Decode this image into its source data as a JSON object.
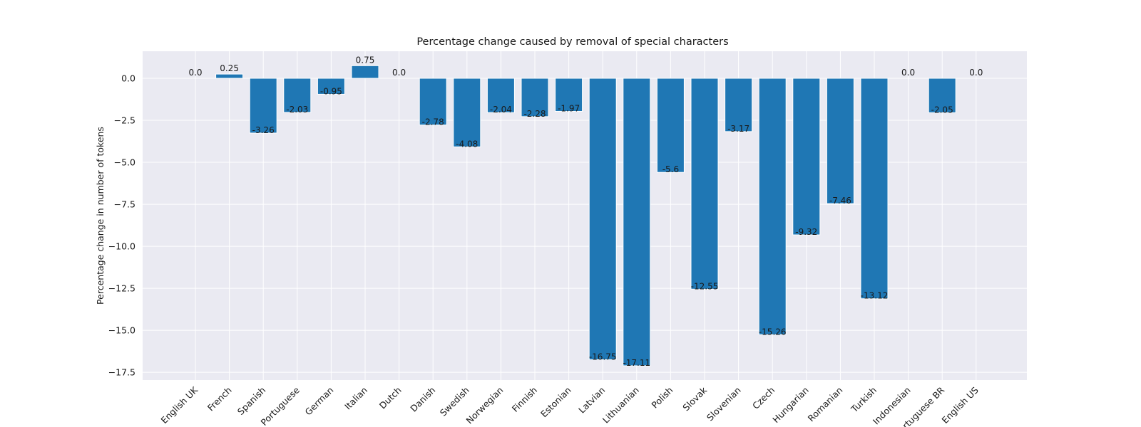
{
  "chart_data": {
    "type": "bar",
    "title": "Percentage change caused by removal of special characters",
    "xlabel": "",
    "ylabel": "Percentage change in number of tokens",
    "categories": [
      "English UK",
      "French",
      "Spanish",
      "Portuguese",
      "German",
      "Italian",
      "Dutch",
      "Danish",
      "Swedish",
      "Norwegian",
      "Finnish",
      "Estonian",
      "Latvian",
      "Lithuanian",
      "Polish",
      "Slovak",
      "Slovenian",
      "Czech",
      "Hungarian",
      "Romanian",
      "Turkish",
      "Indonesian",
      "Portuguese BR",
      "English US"
    ],
    "values": [
      0.0,
      0.25,
      -3.26,
      -2.03,
      -0.95,
      0.75,
      0.0,
      -2.78,
      -4.08,
      -2.04,
      -2.28,
      -1.97,
      -16.75,
      -17.11,
      -5.6,
      -12.55,
      -3.17,
      -15.26,
      -9.32,
      -7.46,
      -13.12,
      0.0,
      -2.05,
      0.0
    ],
    "value_labels": [
      "0.0",
      "0.25",
      "-3.26",
      "-2.03",
      "-0.95",
      "0.75",
      "0.0",
      "-2.78",
      "-4.08",
      "-2.04",
      "-2.28",
      "-1.97",
      "-16.75",
      "-17.11",
      "-5.6",
      "-12.55",
      "-3.17",
      "-15.26",
      "-9.32",
      "-7.46",
      "-13.12",
      "0.0",
      "-2.05",
      "0.0"
    ],
    "yticks": [
      0.0,
      -2.5,
      -5.0,
      -7.5,
      -10.0,
      -12.5,
      -15.0,
      -17.5
    ],
    "ytick_labels": [
      "0.0",
      "−2.5",
      "−5.0",
      "−7.5",
      "−10.0",
      "−12.5",
      "−15.0",
      "−17.5"
    ],
    "ylim": [
      -17.96,
      1.61
    ],
    "grid": true,
    "bar_color": "#1f77b4",
    "background_color": "#eaeaf2"
  }
}
